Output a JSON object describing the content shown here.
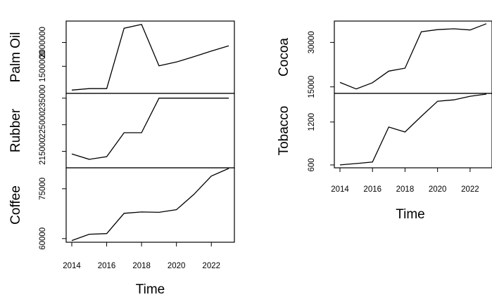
{
  "chart_data": [
    {
      "type": "line",
      "layout": "stacked",
      "x": [
        2014,
        2015,
        2016,
        2017,
        2018,
        2019,
        2020,
        2021,
        2022,
        2023
      ],
      "xlabel": "Time",
      "xticks": [
        2014,
        2016,
        2018,
        2020,
        2022
      ],
      "xlim": [
        2014,
        2023
      ],
      "series": [
        {
          "name": "Palm Oil",
          "values": [
            1000000,
            1030000,
            1030000,
            2300000,
            2380000,
            1510000,
            1590000,
            1700000,
            1820000,
            1930000
          ],
          "ylim": [
            930000,
            2450000
          ],
          "yticks": [
            1500000,
            2000000
          ],
          "ytick_labels": [
            "1500000",
            "2000000"
          ]
        },
        {
          "name": "Rubber",
          "values": [
            214000,
            212000,
            213000,
            222000,
            222000,
            235000,
            235000,
            235000,
            235000,
            235000
          ],
          "ylim": [
            208800,
            236800
          ],
          "yticks": [
            215000,
            225000,
            235000
          ],
          "ytick_labels": [
            "215000",
            "225000",
            "235000"
          ]
        },
        {
          "name": "Coffee",
          "values": [
            59400,
            61300,
            61500,
            67600,
            68000,
            67900,
            68700,
            73300,
            78800,
            81100
          ],
          "ylim": [
            58900,
            81300
          ],
          "yticks": [
            60000,
            75000
          ],
          "ytick_labels": [
            "60000",
            "75000"
          ]
        }
      ]
    },
    {
      "type": "line",
      "layout": "stacked",
      "x": [
        2014,
        2015,
        2016,
        2017,
        2018,
        2019,
        2020,
        2021,
        2022,
        2023
      ],
      "xlabel": "Time",
      "xticks": [
        2014,
        2016,
        2018,
        2020,
        2022
      ],
      "xlim": [
        2014,
        2023
      ],
      "series": [
        {
          "name": "Cocoa",
          "values": [
            16500,
            14300,
            16400,
            20300,
            21300,
            33600,
            34300,
            34600,
            34200,
            36300
          ],
          "ylim": [
            12800,
            37200
          ],
          "yticks": [
            15000,
            30000
          ],
          "ytick_labels": [
            "15000",
            "30000"
          ]
        },
        {
          "name": "Tobacco",
          "values": [
            600,
            620,
            640,
            1130,
            1060,
            1280,
            1490,
            1510,
            1560,
            1590
          ],
          "ylim": [
            560,
            1600
          ],
          "yticks": [
            600,
            1200
          ],
          "ytick_labels": [
            "600",
            "1200"
          ]
        }
      ]
    }
  ]
}
